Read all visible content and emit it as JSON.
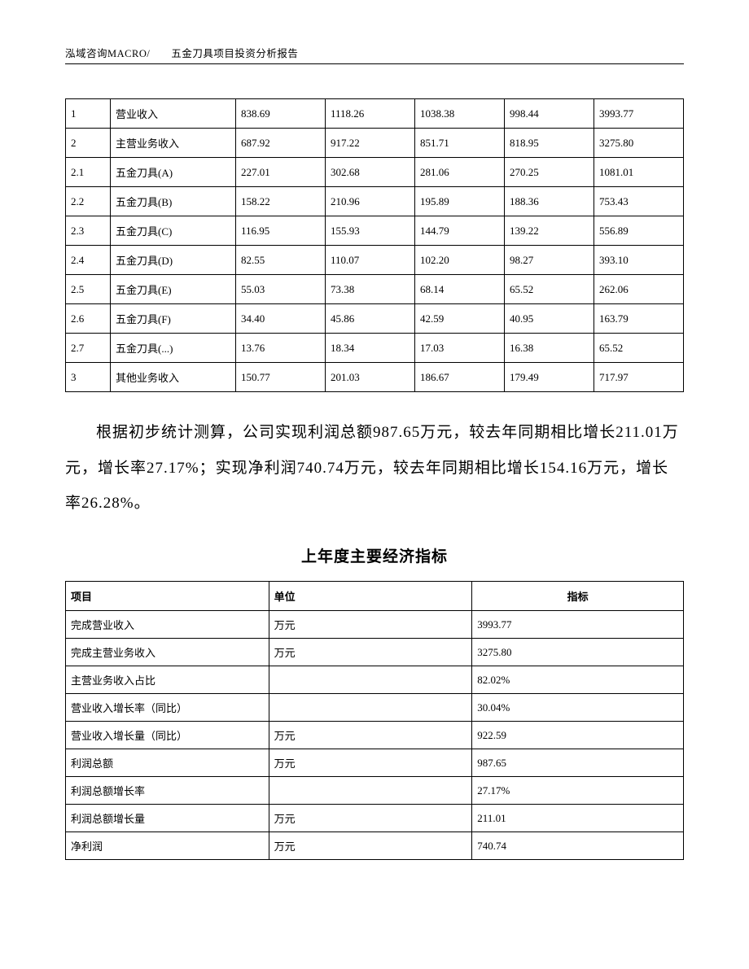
{
  "header": {
    "text": "泓域咨询MACRO/　　五金刀具项目投资分析报告"
  },
  "table1": {
    "type": "table",
    "rows": [
      [
        "1",
        "营业收入",
        "838.69",
        "1118.26",
        "1038.38",
        "998.44",
        "3993.77"
      ],
      [
        "2",
        "主营业务收入",
        "687.92",
        "917.22",
        "851.71",
        "818.95",
        "3275.80"
      ],
      [
        "2.1",
        "五金刀具(A)",
        "227.01",
        "302.68",
        "281.06",
        "270.25",
        "1081.01"
      ],
      [
        "2.2",
        "五金刀具(B)",
        "158.22",
        "210.96",
        "195.89",
        "188.36",
        "753.43"
      ],
      [
        "2.3",
        "五金刀具(C)",
        "116.95",
        "155.93",
        "144.79",
        "139.22",
        "556.89"
      ],
      [
        "2.4",
        "五金刀具(D)",
        "82.55",
        "110.07",
        "102.20",
        "98.27",
        "393.10"
      ],
      [
        "2.5",
        "五金刀具(E)",
        "55.03",
        "73.38",
        "68.14",
        "65.52",
        "262.06"
      ],
      [
        "2.6",
        "五金刀具(F)",
        "34.40",
        "45.86",
        "42.59",
        "40.95",
        "163.79"
      ],
      [
        "2.7",
        "五金刀具(...)",
        "13.76",
        "18.34",
        "17.03",
        "16.38",
        "65.52"
      ],
      [
        "3",
        "其他业务收入",
        "150.77",
        "201.03",
        "186.67",
        "179.49",
        "717.97"
      ]
    ]
  },
  "paragraph": {
    "text": "根据初步统计测算，公司实现利润总额987.65万元，较去年同期相比增长211.01万元，增长率27.17%；实现净利润740.74万元，较去年同期相比增长154.16万元，增长率26.28%。"
  },
  "section_title": "上年度主要经济指标",
  "table2": {
    "type": "table",
    "columns": [
      "项目",
      "单位",
      "指标"
    ],
    "rows": [
      [
        "完成营业收入",
        "万元",
        "3993.77"
      ],
      [
        "完成主营业务收入",
        "万元",
        "3275.80"
      ],
      [
        "主营业务收入占比",
        "",
        "82.02%"
      ],
      [
        "营业收入增长率（同比）",
        "",
        "30.04%"
      ],
      [
        "营业收入增长量（同比）",
        "万元",
        "922.59"
      ],
      [
        "利润总额",
        "万元",
        "987.65"
      ],
      [
        "利润总额增长率",
        "",
        "27.17%"
      ],
      [
        "利润总额增长量",
        "万元",
        "211.01"
      ],
      [
        "净利润",
        "万元",
        "740.74"
      ]
    ]
  }
}
